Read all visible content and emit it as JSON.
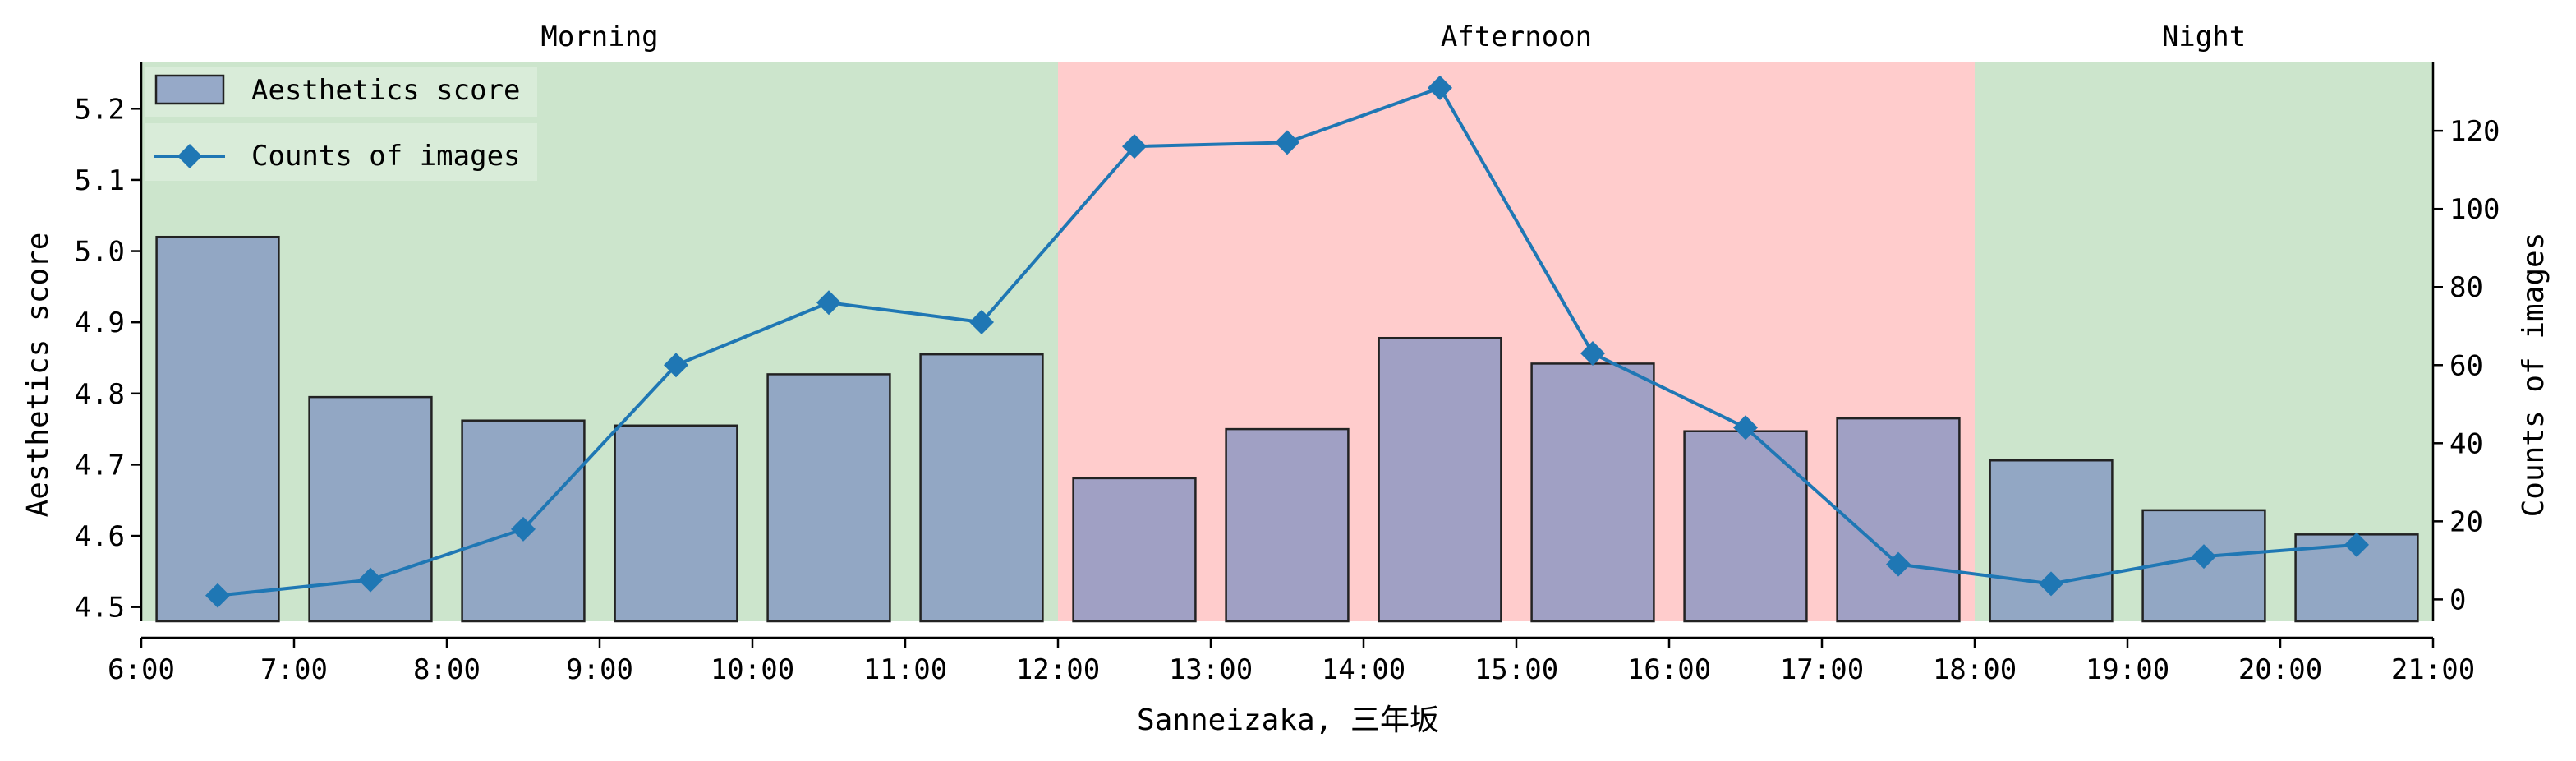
{
  "chart_data": {
    "type": "bar",
    "x_label": "Sanneizaka, 三年坂",
    "x_ticks": [
      "6:00",
      "7:00",
      "8:00",
      "9:00",
      "10:00",
      "11:00",
      "12:00",
      "13:00",
      "14:00",
      "15:00",
      "16:00",
      "17:00",
      "18:00",
      "19:00",
      "20:00",
      "21:00"
    ],
    "x_range": [
      6,
      21
    ],
    "periods": [
      {
        "label": "Morning",
        "start": 6,
        "end": 12,
        "color": "#cce5cc"
      },
      {
        "label": "Afternoon",
        "start": 12,
        "end": 18,
        "color": "#ffcccc"
      },
      {
        "label": "Night",
        "start": 18,
        "end": 21,
        "color": "#cce5cc"
      }
    ],
    "bars": {
      "name": "Aesthetics score",
      "color": "#7b8fc0",
      "x": [
        6.5,
        7.5,
        8.5,
        9.5,
        10.5,
        11.5,
        12.5,
        13.5,
        14.5,
        15.5,
        16.5,
        17.5,
        18.5,
        19.5,
        20.5
      ],
      "values": [
        5.02,
        4.795,
        4.762,
        4.755,
        4.827,
        4.855,
        4.681,
        4.75,
        4.878,
        4.842,
        4.747,
        4.765,
        4.706,
        4.636,
        4.602
      ]
    },
    "line": {
      "name": "Counts of images",
      "color": "#1f77b4",
      "marker": "diamond",
      "x": [
        6.5,
        7.5,
        8.5,
        9.5,
        10.5,
        11.5,
        12.5,
        13.5,
        14.5,
        15.5,
        16.5,
        17.5,
        18.5,
        19.5,
        20.5
      ],
      "values": [
        1,
        5,
        18,
        60,
        76,
        71,
        116,
        117,
        131,
        63,
        44,
        9,
        4,
        11,
        14
      ]
    },
    "y_left": {
      "label": "Aesthetics score",
      "range": [
        4.48,
        5.265
      ],
      "ticks": [
        "4.5",
        "4.6",
        "4.7",
        "4.8",
        "4.9",
        "5.0",
        "5.1",
        "5.2"
      ]
    },
    "y_right": {
      "label": "Counts of images",
      "range": [
        -5.6,
        137.5
      ],
      "ticks": [
        "0",
        "20",
        "40",
        "60",
        "80",
        "100",
        "120"
      ]
    },
    "legend": {
      "placement": "top-left",
      "entries": [
        "Aesthetics score",
        "Counts of images"
      ]
    }
  }
}
